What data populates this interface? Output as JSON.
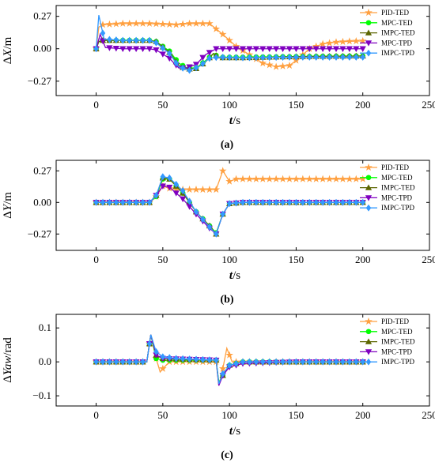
{
  "chart_data": [
    {
      "type": "line",
      "panel_caption": "(a)",
      "ylabel_parts": [
        "Δ",
        "X",
        "/m"
      ],
      "xlabel_parts": [
        "t",
        "/s"
      ],
      "xlim": [
        -30,
        250
      ],
      "ylim": [
        -0.39,
        0.36
      ],
      "xticks": [
        0,
        50,
        100,
        150,
        200,
        250
      ],
      "yticks": [
        {
          "value": 0.27,
          "label": "0.27"
        },
        {
          "value": 0.0,
          "label": "0.00"
        },
        {
          "value": -0.27,
          "label": "−0.27"
        }
      ],
      "legend_position": "right",
      "series": [
        {
          "name": "PID-TED",
          "color": "#ffa040",
          "marker": "star",
          "points": [
            [
              0,
              0.0
            ],
            [
              2,
              0.18
            ],
            [
              5,
              0.2
            ],
            [
              20,
              0.21
            ],
            [
              40,
              0.21
            ],
            [
              60,
              0.2
            ],
            [
              70,
              0.21
            ],
            [
              85,
              0.21
            ],
            [
              95,
              0.12
            ],
            [
              105,
              0.02
            ],
            [
              115,
              -0.05
            ],
            [
              125,
              -0.12
            ],
            [
              135,
              -0.15
            ],
            [
              145,
              -0.14
            ],
            [
              152,
              -0.08
            ],
            [
              160,
              0.0
            ],
            [
              170,
              0.04
            ],
            [
              180,
              0.055
            ],
            [
              190,
              0.062
            ],
            [
              200,
              0.065
            ]
          ]
        },
        {
          "name": "MPC-TED",
          "color": "#00ff00",
          "marker": "circle",
          "points": [
            [
              0,
              0.0
            ],
            [
              2,
              0.06
            ],
            [
              5,
              0.07
            ],
            [
              20,
              0.07
            ],
            [
              40,
              0.07
            ],
            [
              45,
              0.06
            ],
            [
              55,
              -0.02
            ],
            [
              62,
              -0.12
            ],
            [
              68,
              -0.16
            ],
            [
              75,
              -0.16
            ],
            [
              82,
              -0.1
            ],
            [
              88,
              -0.04
            ],
            [
              92,
              -0.07
            ],
            [
              110,
              -0.07
            ],
            [
              150,
              -0.065
            ],
            [
              200,
              -0.06
            ]
          ]
        },
        {
          "name": "IMPC-TED",
          "color": "#5c6600",
          "marker": "triangle-up",
          "points": [
            [
              0,
              0.0
            ],
            [
              2,
              0.06
            ],
            [
              5,
              0.07
            ],
            [
              20,
              0.07
            ],
            [
              40,
              0.07
            ],
            [
              45,
              0.06
            ],
            [
              55,
              -0.03
            ],
            [
              62,
              -0.14
            ],
            [
              68,
              -0.17
            ],
            [
              75,
              -0.165
            ],
            [
              82,
              -0.11
            ],
            [
              88,
              -0.04
            ],
            [
              92,
              -0.075
            ],
            [
              110,
              -0.075
            ],
            [
              150,
              -0.065
            ],
            [
              200,
              -0.06
            ]
          ]
        },
        {
          "name": "MPC-TPD",
          "color": "#8000c0",
          "marker": "triangle-down",
          "points": [
            [
              0,
              0.0
            ],
            [
              3,
              0.12
            ],
            [
              7,
              0.01
            ],
            [
              20,
              0.0
            ],
            [
              40,
              0.0
            ],
            [
              45,
              -0.01
            ],
            [
              55,
              -0.08
            ],
            [
              62,
              -0.16
            ],
            [
              68,
              -0.16
            ],
            [
              75,
              -0.13
            ],
            [
              82,
              -0.05
            ],
            [
              90,
              0.0
            ],
            [
              110,
              0.0
            ],
            [
              150,
              0.0
            ],
            [
              200,
              0.0
            ]
          ]
        },
        {
          "name": "IMPC-TPD",
          "color": "#3399ff",
          "marker": "diamond",
          "points": [
            [
              0,
              0.0
            ],
            [
              2,
              0.28
            ],
            [
              6,
              0.08
            ],
            [
              20,
              0.07
            ],
            [
              40,
              0.07
            ],
            [
              45,
              0.05
            ],
            [
              55,
              -0.04
            ],
            [
              62,
              -0.15
            ],
            [
              70,
              -0.18
            ],
            [
              77,
              -0.15
            ],
            [
              85,
              -0.08
            ],
            [
              92,
              -0.07
            ],
            [
              110,
              -0.075
            ],
            [
              150,
              -0.07
            ],
            [
              200,
              -0.07
            ]
          ]
        }
      ]
    },
    {
      "type": "line",
      "panel_caption": "(b)",
      "ylabel_parts": [
        "Δ",
        "Y",
        "/m"
      ],
      "xlabel_parts": [
        "t",
        "/s"
      ],
      "xlim": [
        -30,
        250
      ],
      "ylim": [
        -0.41,
        0.36
      ],
      "xticks": [
        0,
        50,
        100,
        150,
        200,
        250
      ],
      "yticks": [
        {
          "value": 0.27,
          "label": "0.27"
        },
        {
          "value": 0.0,
          "label": "0.00"
        },
        {
          "value": -0.27,
          "label": "−0.27"
        }
      ],
      "legend_position": "right",
      "series": [
        {
          "name": "PID-TED",
          "color": "#ffa040",
          "marker": "star",
          "points": [
            [
              0,
              0.0
            ],
            [
              40,
              0.0
            ],
            [
              45,
              0.05
            ],
            [
              50,
              0.14
            ],
            [
              55,
              0.12
            ],
            [
              60,
              0.11
            ],
            [
              70,
              0.11
            ],
            [
              90,
              0.11
            ],
            [
              95,
              0.27
            ],
            [
              100,
              0.18
            ],
            [
              105,
              0.2
            ],
            [
              115,
              0.2
            ],
            [
              150,
              0.2
            ],
            [
              200,
              0.2
            ]
          ]
        },
        {
          "name": "MPC-TED",
          "color": "#00ff00",
          "marker": "circle",
          "points": [
            [
              0,
              0.0
            ],
            [
              40,
              0.0
            ],
            [
              45,
              0.05
            ],
            [
              50,
              0.2
            ],
            [
              55,
              0.2
            ],
            [
              65,
              0.08
            ],
            [
              75,
              -0.08
            ],
            [
              85,
              -0.2
            ],
            [
              90,
              -0.26
            ],
            [
              95,
              -0.1
            ],
            [
              100,
              -0.01
            ],
            [
              110,
              0.0
            ],
            [
              150,
              0.0
            ],
            [
              200,
              0.0
            ]
          ]
        },
        {
          "name": "IMPC-TED",
          "color": "#5c6600",
          "marker": "triangle-up",
          "points": [
            [
              0,
              0.0
            ],
            [
              40,
              0.0
            ],
            [
              45,
              0.06
            ],
            [
              50,
              0.21
            ],
            [
              55,
              0.2
            ],
            [
              65,
              0.08
            ],
            [
              75,
              -0.08
            ],
            [
              85,
              -0.2
            ],
            [
              90,
              -0.27
            ],
            [
              95,
              -0.1
            ],
            [
              100,
              -0.01
            ],
            [
              110,
              0.0
            ],
            [
              150,
              0.0
            ],
            [
              200,
              0.0
            ]
          ]
        },
        {
          "name": "MPC-TPD",
          "color": "#8000c0",
          "marker": "triangle-down",
          "points": [
            [
              0,
              0.0
            ],
            [
              40,
              0.0
            ],
            [
              45,
              0.06
            ],
            [
              50,
              0.14
            ],
            [
              55,
              0.13
            ],
            [
              65,
              0.03
            ],
            [
              75,
              -0.1
            ],
            [
              85,
              -0.22
            ],
            [
              90,
              -0.27
            ],
            [
              95,
              -0.1
            ],
            [
              100,
              -0.01
            ],
            [
              110,
              0.0
            ],
            [
              150,
              0.0
            ],
            [
              200,
              0.0
            ]
          ]
        },
        {
          "name": "IMPC-TPD",
          "color": "#3399ff",
          "marker": "diamond",
          "points": [
            [
              0,
              0.0
            ],
            [
              40,
              0.0
            ],
            [
              45,
              0.06
            ],
            [
              50,
              0.22
            ],
            [
              55,
              0.21
            ],
            [
              65,
              0.1
            ],
            [
              75,
              -0.08
            ],
            [
              85,
              -0.21
            ],
            [
              90,
              -0.27
            ],
            [
              95,
              -0.1
            ],
            [
              100,
              -0.01
            ],
            [
              110,
              0.0
            ],
            [
              150,
              0.0
            ],
            [
              200,
              0.0
            ]
          ]
        }
      ]
    },
    {
      "type": "line",
      "panel_caption": "(c)",
      "ylabel_parts": [
        "Δ",
        "Yaw",
        "/rad"
      ],
      "xlabel_parts": [
        "t",
        "/s"
      ],
      "xlim": [
        -30,
        250
      ],
      "ylim": [
        -0.13,
        0.14
      ],
      "xticks": [
        0,
        50,
        100,
        150,
        200,
        250
      ],
      "yticks": [
        {
          "value": 0.1,
          "label": "0.1"
        },
        {
          "value": 0.0,
          "label": "0.0"
        },
        {
          "value": -0.1,
          "label": "−0.1"
        }
      ],
      "legend_position": "right",
      "series": [
        {
          "name": "PID-TED",
          "color": "#ffa040",
          "marker": "star",
          "points": [
            [
              0,
              0.0
            ],
            [
              38,
              0.0
            ],
            [
              41,
              0.08
            ],
            [
              45,
              0.01
            ],
            [
              48,
              -0.03
            ],
            [
              50,
              -0.02
            ],
            [
              55,
              0.0
            ],
            [
              90,
              0.0
            ],
            [
              92,
              -0.07
            ],
            [
              95,
              -0.02
            ],
            [
              98,
              0.04
            ],
            [
              102,
              0.0
            ],
            [
              110,
              0.0
            ],
            [
              150,
              0.0
            ],
            [
              200,
              0.0
            ]
          ]
        },
        {
          "name": "MPC-TED",
          "color": "#00ff00",
          "marker": "circle",
          "points": [
            [
              0,
              0.0
            ],
            [
              38,
              0.0
            ],
            [
              41,
              0.08
            ],
            [
              45,
              0.01
            ],
            [
              50,
              0.005
            ],
            [
              90,
              0.005
            ],
            [
              92,
              -0.06
            ],
            [
              95,
              -0.04
            ],
            [
              100,
              -0.01
            ],
            [
              110,
              0.0
            ],
            [
              150,
              0.0
            ],
            [
              200,
              0.0
            ]
          ]
        },
        {
          "name": "IMPC-TED",
          "color": "#5c6600",
          "marker": "triangle-up",
          "points": [
            [
              0,
              0.0
            ],
            [
              38,
              0.0
            ],
            [
              41,
              0.08
            ],
            [
              45,
              0.02
            ],
            [
              50,
              0.01
            ],
            [
              90,
              0.005
            ],
            [
              92,
              -0.065
            ],
            [
              95,
              -0.04
            ],
            [
              100,
              -0.01
            ],
            [
              110,
              0.0
            ],
            [
              150,
              0.0
            ],
            [
              200,
              0.0
            ]
          ]
        },
        {
          "name": "MPC-TPD",
          "color": "#8000c0",
          "marker": "triangle-down",
          "points": [
            [
              0,
              0.0
            ],
            [
              38,
              0.0
            ],
            [
              41,
              0.08
            ],
            [
              45,
              0.02
            ],
            [
              50,
              0.01
            ],
            [
              90,
              0.005
            ],
            [
              92,
              -0.07
            ],
            [
              95,
              -0.04
            ],
            [
              100,
              -0.015
            ],
            [
              110,
              -0.005
            ],
            [
              150,
              0.0
            ],
            [
              200,
              0.0
            ]
          ]
        },
        {
          "name": "IMPC-TPD",
          "color": "#3399ff",
          "marker": "diamond",
          "points": [
            [
              0,
              0.0
            ],
            [
              38,
              0.0
            ],
            [
              41,
              0.08
            ],
            [
              45,
              0.03
            ],
            [
              50,
              0.015
            ],
            [
              60,
              0.01
            ],
            [
              90,
              0.005
            ],
            [
              92,
              -0.065
            ],
            [
              95,
              -0.035
            ],
            [
              100,
              -0.01
            ],
            [
              110,
              0.0
            ],
            [
              150,
              0.0
            ],
            [
              200,
              0.0
            ]
          ]
        }
      ]
    }
  ]
}
